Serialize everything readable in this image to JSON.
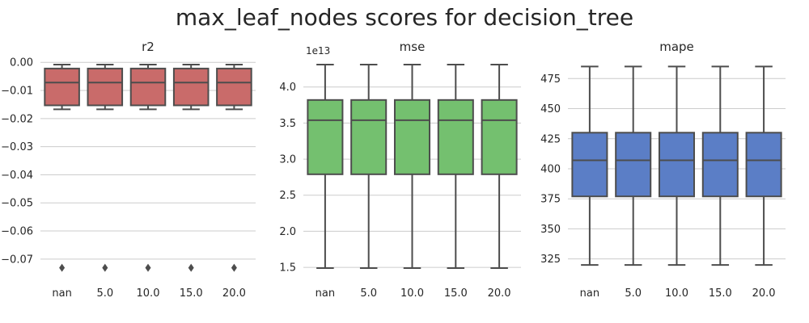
{
  "figure": {
    "title": "max_leaf_nodes scores for decision_tree"
  },
  "chart_data": [
    {
      "type": "box",
      "title": "r2",
      "categories": [
        "nan",
        "5.0",
        "10.0",
        "15.0",
        "20.0"
      ],
      "color": "#c96b6a",
      "ylim": [
        -0.0755,
        0.0015
      ],
      "yticks": [
        0.0,
        -0.01,
        -0.02,
        -0.03,
        -0.04,
        -0.05,
        -0.06,
        -0.07
      ],
      "ytick_labels": [
        "0.00",
        "−0.01",
        "−0.02",
        "−0.03",
        "−0.04",
        "−0.05",
        "−0.06",
        "−0.07"
      ],
      "offset_text": "",
      "series": [
        {
          "whisker_low": -0.0167,
          "q1": -0.0153,
          "median": -0.0072,
          "q3": -0.0022,
          "whisker_high": -0.0008,
          "outliers": [
            -0.0731
          ]
        },
        {
          "whisker_low": -0.0167,
          "q1": -0.0153,
          "median": -0.0072,
          "q3": -0.0022,
          "whisker_high": -0.0008,
          "outliers": [
            -0.0731
          ]
        },
        {
          "whisker_low": -0.0167,
          "q1": -0.0153,
          "median": -0.0072,
          "q3": -0.0022,
          "whisker_high": -0.0008,
          "outliers": [
            -0.0731
          ]
        },
        {
          "whisker_low": -0.0167,
          "q1": -0.0153,
          "median": -0.0072,
          "q3": -0.0022,
          "whisker_high": -0.0008,
          "outliers": [
            -0.0731
          ]
        },
        {
          "whisker_low": -0.0167,
          "q1": -0.0153,
          "median": -0.0072,
          "q3": -0.0022,
          "whisker_high": -0.0008,
          "outliers": [
            -0.0731
          ]
        }
      ]
    },
    {
      "type": "box",
      "title": "mse",
      "categories": [
        "nan",
        "5.0",
        "10.0",
        "15.0",
        "20.0"
      ],
      "color": "#74c06f",
      "ylim": [
        1.4,
        4.4
      ],
      "yticks": [
        1.5,
        2.0,
        2.5,
        3.0,
        3.5,
        4.0
      ],
      "ytick_labels": [
        "1.5",
        "2.0",
        "2.5",
        "3.0",
        "3.5",
        "4.0"
      ],
      "offset_text": "1e13",
      "series": [
        {
          "whisker_low": 1.49,
          "q1": 2.79,
          "median": 3.54,
          "q3": 3.82,
          "whisker_high": 4.31,
          "outliers": []
        },
        {
          "whisker_low": 1.49,
          "q1": 2.79,
          "median": 3.54,
          "q3": 3.82,
          "whisker_high": 4.31,
          "outliers": []
        },
        {
          "whisker_low": 1.49,
          "q1": 2.79,
          "median": 3.54,
          "q3": 3.82,
          "whisker_high": 4.31,
          "outliers": []
        },
        {
          "whisker_low": 1.49,
          "q1": 2.79,
          "median": 3.54,
          "q3": 3.82,
          "whisker_high": 4.31,
          "outliers": []
        },
        {
          "whisker_low": 1.49,
          "q1": 2.79,
          "median": 3.54,
          "q3": 3.82,
          "whisker_high": 4.31,
          "outliers": []
        }
      ]
    },
    {
      "type": "box",
      "title": "mape",
      "categories": [
        "nan",
        "5.0",
        "10.0",
        "15.0",
        "20.0"
      ],
      "color": "#5b7ec6",
      "ylim": [
        312,
        492
      ],
      "yticks": [
        325,
        350,
        375,
        400,
        425,
        450,
        475
      ],
      "ytick_labels": [
        "325",
        "350",
        "375",
        "400",
        "425",
        "450",
        "475"
      ],
      "offset_text": "",
      "series": [
        {
          "whisker_low": 320,
          "q1": 377,
          "median": 407,
          "q3": 430,
          "whisker_high": 485,
          "outliers": []
        },
        {
          "whisker_low": 320,
          "q1": 377,
          "median": 407,
          "q3": 430,
          "whisker_high": 485,
          "outliers": []
        },
        {
          "whisker_low": 320,
          "q1": 377,
          "median": 407,
          "q3": 430,
          "whisker_high": 485,
          "outliers": []
        },
        {
          "whisker_low": 320,
          "q1": 377,
          "median": 407,
          "q3": 430,
          "whisker_high": 485,
          "outliers": []
        },
        {
          "whisker_low": 320,
          "q1": 377,
          "median": 407,
          "q3": 430,
          "whisker_high": 485,
          "outliers": []
        }
      ]
    }
  ]
}
